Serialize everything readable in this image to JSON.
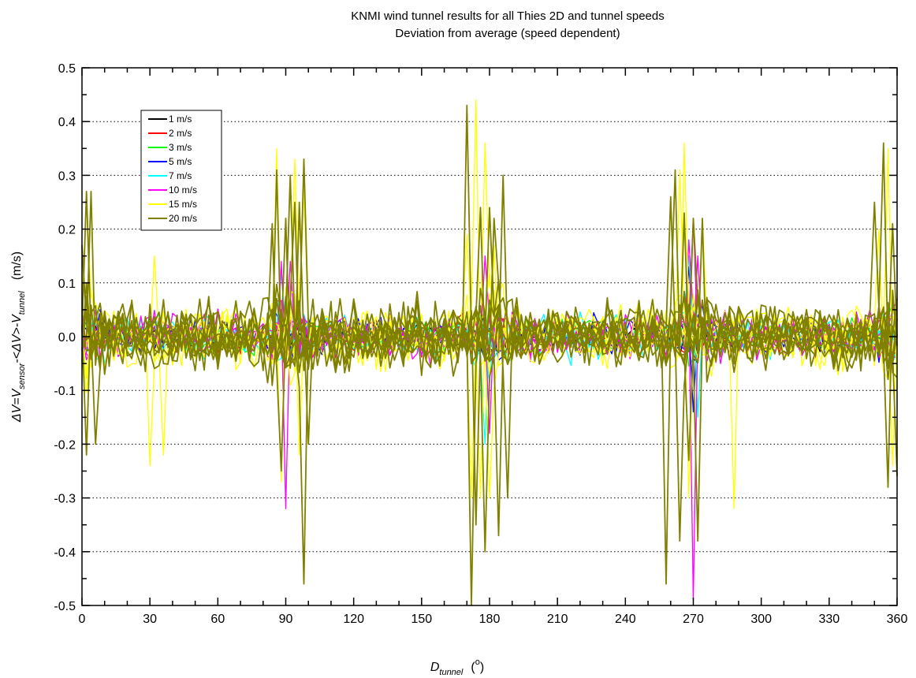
{
  "chart_data": {
    "type": "line",
    "title": "KNMI wind tunnel results for all Thies 2D and tunnel speeds",
    "subtitle": "Deviation from average (speed dependent)",
    "xlabel": {
      "main": "D",
      "sub": "tunnel",
      "unit": "(",
      "unit_sup": "o",
      "unit_close": ")"
    },
    "ylabel": {
      "delta": "Δ",
      "v1": "V=V",
      "sub1": "sensor",
      "mid": "-<",
      "delta2": "Δ",
      "v2": "V>-V",
      "sub2": "tunnel",
      "unit": "(m/s)"
    },
    "xlim": [
      0,
      360
    ],
    "ylim": [
      -0.5,
      0.5
    ],
    "xticks": [
      "0",
      "30",
      "60",
      "90",
      "120",
      "150",
      "180",
      "210",
      "240",
      "270",
      "300",
      "330",
      "360"
    ],
    "yticks": [
      "-0.5",
      "-0.4",
      "-0.3",
      "-0.2",
      "-0.1",
      "0.0",
      "0.1",
      "0.2",
      "0.3",
      "0.4",
      "0.5"
    ],
    "grid": "horizontal dotted",
    "legend_position": "top-left",
    "series": [
      {
        "name": "1 m/s",
        "color": "#000000",
        "curves": 1,
        "amplitude": 0.04,
        "spikes": []
      },
      {
        "name": "2 m/s",
        "color": "#ff0000",
        "curves": 1,
        "amplitude": 0.045,
        "spikes": []
      },
      {
        "name": "3 m/s",
        "color": "#00ff00",
        "curves": 1,
        "amplitude": 0.045,
        "spikes": []
      },
      {
        "name": "5 m/s",
        "color": "#0000ff",
        "curves": 2,
        "amplitude": 0.05,
        "spikes": [
          [
            268,
            0.13
          ],
          [
            270,
            -0.14
          ]
        ]
      },
      {
        "name": "7 m/s",
        "color": "#00ffff",
        "curves": 3,
        "amplitude": 0.055,
        "spikes": [
          [
            88,
            0.12
          ],
          [
            178,
            -0.2
          ],
          [
            268,
            0.15
          ],
          [
            271,
            -0.15
          ]
        ]
      },
      {
        "name": "10 m/s",
        "color": "#ff00ff",
        "curves": 4,
        "amplitude": 0.06,
        "spikes": [
          [
            88,
            0.14
          ],
          [
            90,
            -0.32
          ],
          [
            92,
            0.14
          ],
          [
            178,
            0.15
          ],
          [
            180,
            -0.18
          ],
          [
            268,
            0.18
          ],
          [
            270,
            0.22
          ],
          [
            270.5,
            -0.49
          ],
          [
            272,
            0.15
          ]
        ]
      },
      {
        "name": "15 m/s",
        "color": "#ffff00",
        "curves": 6,
        "amplitude": 0.075,
        "spikes": [
          [
            2,
            0.26
          ],
          [
            32,
            0.15
          ],
          [
            30,
            -0.24
          ],
          [
            35,
            -0.22
          ],
          [
            86,
            0.35
          ],
          [
            88,
            -0.27
          ],
          [
            93,
            0.33
          ],
          [
            96,
            -0.22
          ],
          [
            98,
            0.28
          ],
          [
            170,
            0.19
          ],
          [
            172,
            -0.3
          ],
          [
            174,
            0.44
          ],
          [
            176,
            -0.3
          ],
          [
            178,
            0.36
          ],
          [
            180,
            -0.3
          ],
          [
            182,
            0.17
          ],
          [
            264,
            0.31
          ],
          [
            266,
            0.36
          ],
          [
            268,
            -0.3
          ],
          [
            273,
            0.22
          ],
          [
            287,
            -0.32
          ],
          [
            352,
            0.2
          ],
          [
            356,
            0.35
          ],
          [
            358,
            -0.24
          ]
        ]
      },
      {
        "name": "20 m/s",
        "color": "#808000",
        "curves": 9,
        "amplitude": 0.085,
        "spikes": [
          [
            0,
            0.17
          ],
          [
            1,
            -0.22
          ],
          [
            2,
            0.27
          ],
          [
            3,
            0.27
          ],
          [
            5,
            -0.2
          ],
          [
            84,
            0.21
          ],
          [
            86,
            0.31
          ],
          [
            87,
            -0.25
          ],
          [
            89,
            0.22
          ],
          [
            91,
            0.3
          ],
          [
            93,
            0.25
          ],
          [
            95,
            0.25
          ],
          [
            97,
            0.33
          ],
          [
            98,
            -0.46
          ],
          [
            100,
            -0.2
          ],
          [
            170,
            0.43
          ],
          [
            172,
            -0.5
          ],
          [
            174,
            -0.35
          ],
          [
            176,
            0.24
          ],
          [
            178,
            -0.4
          ],
          [
            180,
            0.24
          ],
          [
            182,
            0.22
          ],
          [
            186,
            0.3
          ],
          [
            184,
            -0.37
          ],
          [
            188,
            -0.3
          ],
          [
            258,
            -0.46
          ],
          [
            260,
            0.26
          ],
          [
            262,
            0.31
          ],
          [
            264,
            -0.38
          ],
          [
            266,
            0.23
          ],
          [
            268,
            -0.23
          ],
          [
            270,
            0.22
          ],
          [
            272,
            -0.38
          ],
          [
            274,
            0.22
          ],
          [
            350,
            0.25
          ],
          [
            354,
            0.36
          ],
          [
            356,
            -0.28
          ],
          [
            358,
            0.21
          ],
          [
            359,
            -0.26
          ]
        ]
      }
    ]
  }
}
